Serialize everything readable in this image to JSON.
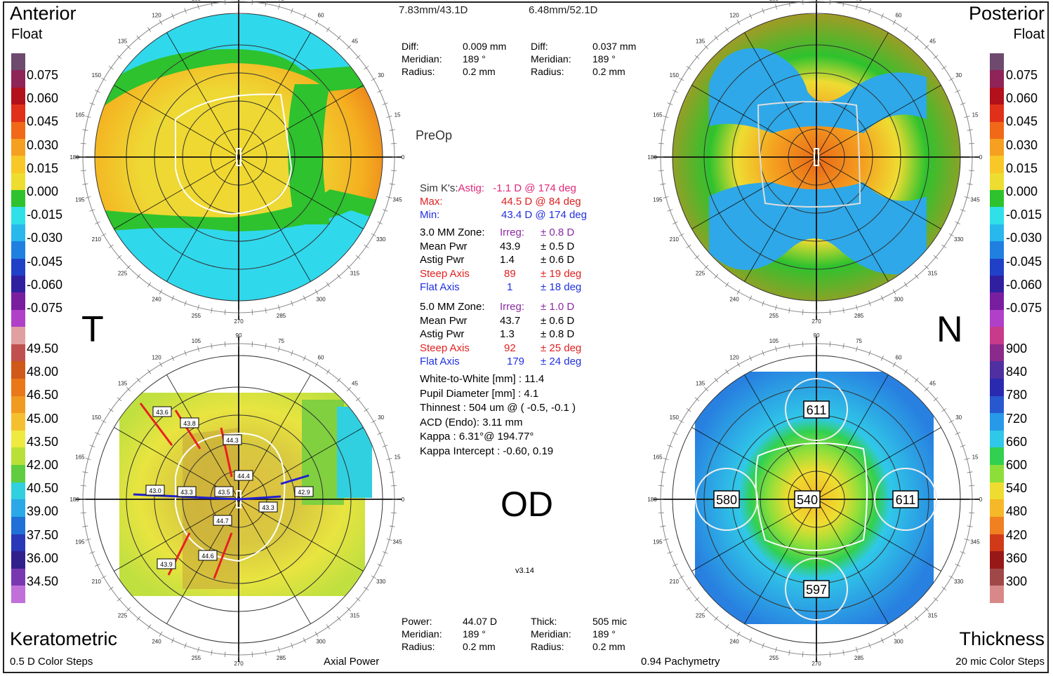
{
  "colors": {
    "float_scale": [
      "#6e4a6e",
      "#8e2458",
      "#b2101a",
      "#e0301a",
      "#f06818",
      "#f5a020",
      "#f8c828",
      "#eddd30",
      "#2ec22e",
      "#30e0e8",
      "#28b8ec",
      "#2080e0",
      "#2040c8",
      "#3020a0",
      "#7a1ea0",
      "#b040c8"
    ],
    "kerato_scale": [
      "#e0a0a0",
      "#c05050",
      "#d05818",
      "#e87818",
      "#f09a20",
      "#f5c030",
      "#eeea40",
      "#b8e038",
      "#60cc40",
      "#30d0e0",
      "#2aa8e8",
      "#2070d8",
      "#2838b8",
      "#30208c",
      "#7a38b0",
      "#c070d8"
    ],
    "thick_scale": [
      "#c83a8a",
      "#8a2a8a",
      "#5030a0",
      "#2a2ab0",
      "#2858d0",
      "#2898e8",
      "#30c8e8",
      "#32d050",
      "#8ede3a",
      "#eedd30",
      "#f5b828",
      "#f08020",
      "#d03a18",
      "#981818",
      "#a04848",
      "#d88888"
    ]
  },
  "header": {
    "radius_left": "7.83mm/43.1D",
    "radius_right": "6.48mm/52.1D",
    "diff_left": {
      "diff": "Diff:",
      "diff_val": "0.009 mm",
      "meridian": "Meridian:",
      "meridian_val": "189 °",
      "radius": "Radius:",
      "radius_val": "0.2 mm"
    },
    "diff_right": {
      "diff": "Diff:",
      "diff_val": "0.037 mm",
      "meridian": "Meridian:",
      "meridian_val": "189 °",
      "radius": "Radius:",
      "radius_val": "0.2 mm"
    }
  },
  "corners": {
    "anterior": "Anterior",
    "anterior_sub": "Float",
    "posterior": "Posterior",
    "posterior_sub": "Float",
    "keratometric": "Keratometric",
    "keratometric_sub": "0.5 D Color Steps",
    "axial": "Axial Power",
    "pachymetry": "0.94 Pachymetry",
    "thickness": "Thickness",
    "thickness_sub": "20 mic Color Steps"
  },
  "side": {
    "left": "T",
    "right": "N",
    "eye": "OD",
    "preop": "PreOp",
    "version": "v3.14"
  },
  "scales": {
    "float": [
      "0.075",
      "0.060",
      "0.045",
      "0.030",
      "0.015",
      "0.000",
      "-0.015",
      "-0.030",
      "-0.045",
      "-0.060",
      "-0.075"
    ],
    "kerato": [
      "49.50",
      "48.00",
      "46.50",
      "45.00",
      "43.50",
      "42.00",
      "40.50",
      "39.00",
      "37.50",
      "36.00",
      "34.50"
    ],
    "thick": [
      "900",
      "840",
      "780",
      "720",
      "660",
      "600",
      "540",
      "480",
      "420",
      "360",
      "300"
    ]
  },
  "simk": {
    "label": "Sim K's:",
    "astig": "Astig:",
    "astig_val": "-1.1 D",
    "astig_deg": "@ 174 deg",
    "max": "Max:",
    "max_val": "44.5 D",
    "max_deg": "@ 84 deg",
    "min": "Min:",
    "min_val": "43.4 D",
    "min_deg": "@ 174 deg"
  },
  "zone3": {
    "title": "3.0 MM Zone:",
    "irreg": "Irreg:",
    "irreg_val": "± 0.8 D",
    "mean": "Mean Pwr",
    "mean_val": "43.9",
    "mean_sd": "± 0.5 D",
    "astig": "Astig Pwr",
    "astig_val": "1.4",
    "astig_sd": "± 0.6 D",
    "steep": "Steep Axis",
    "steep_val": "89",
    "steep_sd": "± 19 deg",
    "flat": "Flat Axis",
    "flat_val": "1",
    "flat_sd": "± 18 deg"
  },
  "zone5": {
    "title": "5.0 MM Zone:",
    "irreg": "Irreg:",
    "irreg_val": "± 1.0 D",
    "mean": "Mean Pwr",
    "mean_val": "43.7",
    "mean_sd": "± 0.6 D",
    "astig": "Astig Pwr",
    "astig_val": "1.3",
    "astig_sd": "± 0.8 D",
    "steep": "Steep Axis",
    "steep_val": "92",
    "steep_sd": "± 25 deg",
    "flat": "Flat Axis",
    "flat_val": "179",
    "flat_sd": "± 24 deg"
  },
  "misc": [
    "White-to-White [mm] : 11.4",
    "Pupil Diameter [mm] : 4.1",
    "Thinnest : 504 um @ ( -0.5, -0.1 )",
    "ACD (Endo): 3.11 mm",
    "Kappa : 6.31°@ 194.77°",
    "Kappa Intercept : -0.60, 0.19"
  ],
  "footer": {
    "left": {
      "power": "Power:",
      "power_val": "44.07 D",
      "meridian": "Meridian:",
      "meridian_val": "189 °",
      "radius": "Radius:",
      "radius_val": "0.2 mm"
    },
    "right": {
      "thick": "Thick:",
      "thick_val": "505 mic",
      "meridian": "Meridian:",
      "meridian_val": "189 °",
      "radius": "Radius:",
      "radius_val": "0.2 mm"
    }
  },
  "kerato_labels": [
    "43.6",
    "43.8",
    "44.3",
    "44.4",
    "43.0",
    "43.3",
    "43.5",
    "43.3",
    "42.9",
    "44.7",
    "44.6",
    "43.9"
  ],
  "pachy_labels": [
    "611",
    "580",
    "540",
    "611",
    "597"
  ],
  "degree_ticks": [
    "0",
    "15",
    "30",
    "45",
    "60",
    "75",
    "90",
    "105",
    "120",
    "135",
    "150",
    "165",
    "180",
    "195",
    "210",
    "225",
    "240",
    "255",
    "270",
    "285",
    "300",
    "315",
    "330",
    "345"
  ]
}
